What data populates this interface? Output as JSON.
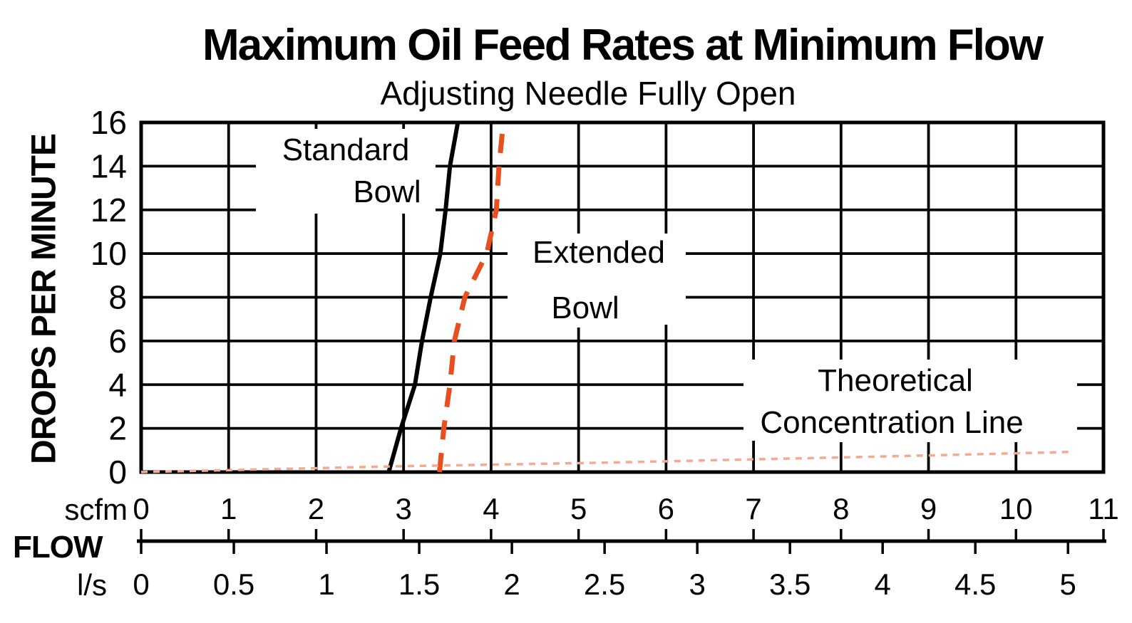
{
  "chart_data": {
    "type": "line",
    "title": "Maximum Oil Feed Rates at Minimum Flow",
    "subtitle": "Adjusting Needle Fully Open",
    "y_axis": {
      "title": "DROPS PER MINUTE",
      "ticks": [
        0,
        2,
        4,
        6,
        8,
        10,
        12,
        14,
        16
      ],
      "range": [
        0,
        16
      ],
      "grid": true
    },
    "x_axis": {
      "title": "FLOW",
      "scfm": {
        "unit": "scfm",
        "ticks": [
          0,
          1,
          2,
          3,
          4,
          5,
          6,
          7,
          8,
          9,
          10,
          11
        ],
        "range": [
          0,
          11
        ],
        "grid": true
      },
      "ls": {
        "unit": "l/s",
        "ticks": [
          0,
          0.5,
          1,
          1.5,
          2,
          2.5,
          3,
          3.5,
          4,
          4.5,
          5
        ],
        "scfm_per_unit": 2.1189
      }
    },
    "series": [
      {
        "name": "Standard Bowl",
        "style": "solid",
        "color": "#000000",
        "stroke_width": 6,
        "dash": "",
        "points_scfm_drops": [
          [
            2.83,
            0
          ],
          [
            2.97,
            2
          ],
          [
            3.13,
            4
          ],
          [
            3.21,
            6
          ],
          [
            3.31,
            8
          ],
          [
            3.42,
            10
          ],
          [
            3.48,
            12
          ],
          [
            3.53,
            14
          ],
          [
            3.62,
            16
          ]
        ]
      },
      {
        "name": "Extended Bowl",
        "style": "dashed",
        "color": "#E84E1E",
        "stroke_width": 7,
        "dash": "27 19",
        "points_scfm_drops": [
          [
            3.41,
            0
          ],
          [
            3.46,
            2
          ],
          [
            3.53,
            4
          ],
          [
            3.58,
            6
          ],
          [
            3.7,
            8
          ],
          [
            3.95,
            10
          ],
          [
            4.06,
            12
          ],
          [
            4.09,
            14
          ],
          [
            4.14,
            16
          ]
        ]
      },
      {
        "name": "Theoretical Concentration Line",
        "style": "dotted",
        "color": "#F5A98E",
        "stroke_width": 3.5,
        "dash": "9 8",
        "points_scfm_drops": [
          [
            0,
            0
          ],
          [
            2.9,
            0.26
          ],
          [
            5.3,
            0.43
          ],
          [
            7.43,
            0.62
          ],
          [
            9.2,
            0.78
          ],
          [
            10.6,
            0.92
          ]
        ]
      }
    ],
    "annotations": [
      {
        "line1": "Standard",
        "line2": "Bowl"
      },
      {
        "line1": "Extended",
        "line2": "Bowl"
      },
      {
        "line1": "Theoretical",
        "line2": "Concentration Line"
      }
    ]
  },
  "colors": {
    "grid": "#000000",
    "extended_bowl_dash": "#E84E1E",
    "theoretical_dotted": "#F5A98E",
    "background": "#FFFFFF"
  }
}
